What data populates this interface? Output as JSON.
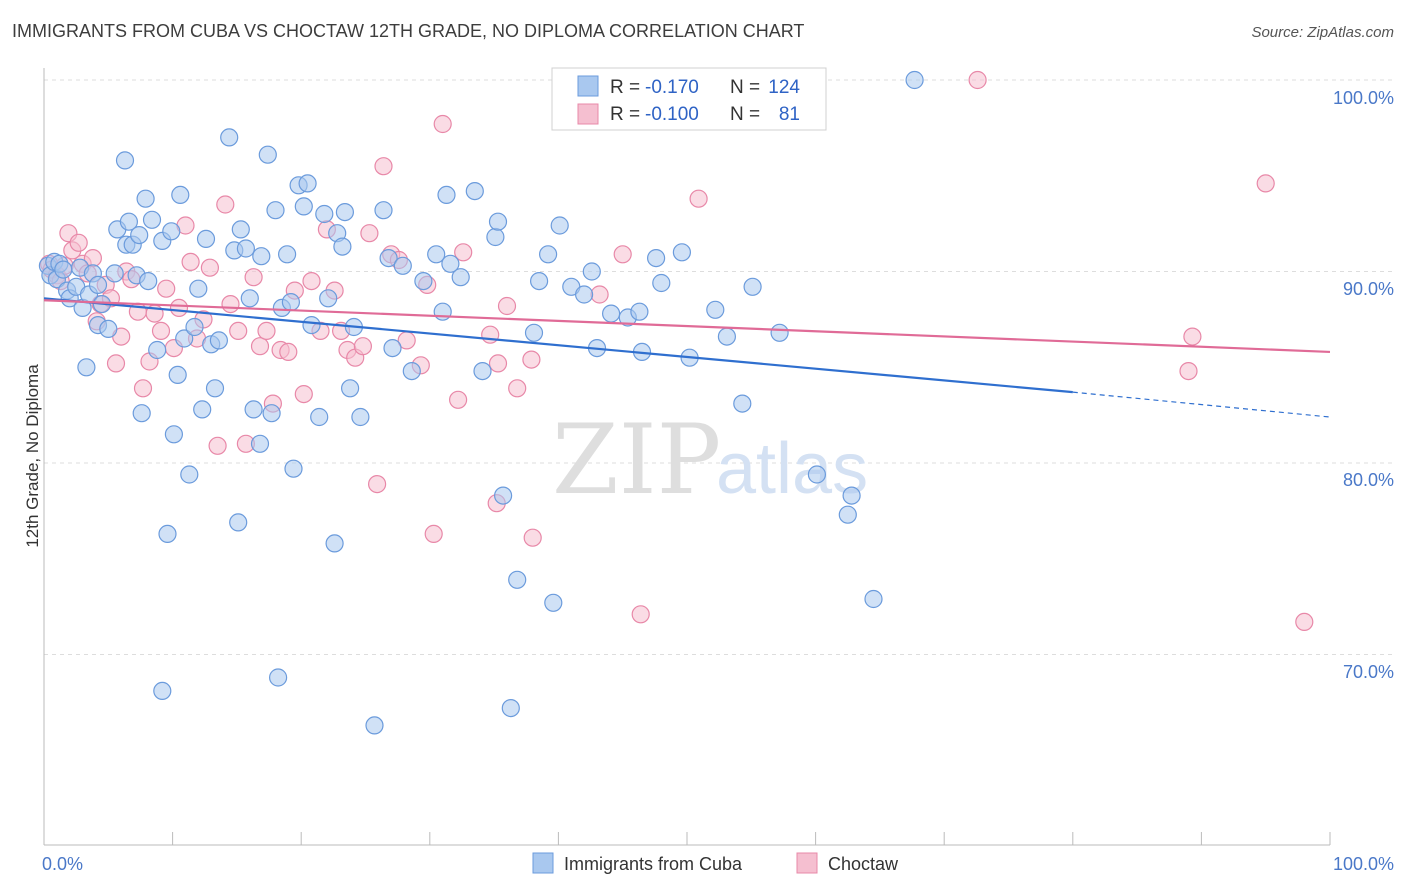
{
  "title": "IMMIGRANTS FROM CUBA VS CHOCTAW 12TH GRADE, NO DIPLOMA CORRELATION CHART",
  "source": "Source: ZipAtlas.com",
  "watermark": {
    "part1": "ZIP",
    "part2": "atlas"
  },
  "stats_box": {
    "rows": [
      {
        "r_label": "R =",
        "r_value": "-0.170",
        "n_label": "N =",
        "n_value": "124"
      },
      {
        "r_label": "R =",
        "r_value": "-0.100",
        "n_label": "N =",
        "n_value": "81"
      }
    ]
  },
  "legend": {
    "items": [
      {
        "label": "Immigrants from Cuba"
      },
      {
        "label": "Choctaw"
      }
    ]
  },
  "colors": {
    "cuba_fill": "#a9c8ef",
    "cuba_stroke": "#6b9bdc",
    "cuba_line": "#2f6fcf",
    "choctaw_fill": "#f5bfd0",
    "choctaw_stroke": "#e888a8",
    "choctaw_line": "#e06b97",
    "grid": "#dddddd",
    "axis_text": "#4a78c8"
  },
  "chart_data": {
    "type": "scatter",
    "title": "IMMIGRANTS FROM CUBA VS CHOCTAW 12TH GRADE, NO DIPLOMA CORRELATION CHART",
    "xlabel": "",
    "ylabel": "12th Grade, No Diploma",
    "xlim": [
      0,
      100
    ],
    "ylim": [
      61,
      101.5
    ],
    "x_tick_labels": [
      "0.0%",
      "100.0%"
    ],
    "y_tick_values": [
      70,
      80,
      90,
      100
    ],
    "y_tick_labels": [
      "70.0%",
      "80.0%",
      "90.0%",
      "100.0%"
    ],
    "grid": true,
    "legend_position": "bottom",
    "series": [
      {
        "name": "Immigrants from Cuba",
        "r": -0.17,
        "n": 124,
        "trend": {
          "x_solid": [
            0,
            80
          ],
          "y_solid": [
            88.6,
            83.7
          ],
          "x_dashed": [
            80,
            100
          ],
          "y_dashed": [
            83.7,
            82.4
          ]
        },
        "points": [
          [
            0.3,
            90.3
          ],
          [
            0.5,
            89.8
          ],
          [
            0.8,
            90.5
          ],
          [
            1.0,
            89.6
          ],
          [
            1.2,
            90.4
          ],
          [
            1.5,
            90.1
          ],
          [
            1.8,
            89.0
          ],
          [
            2.0,
            88.6
          ],
          [
            2.5,
            89.2
          ],
          [
            2.8,
            90.2
          ],
          [
            3.0,
            88.1
          ],
          [
            3.3,
            85.0
          ],
          [
            3.5,
            88.8
          ],
          [
            3.8,
            89.9
          ],
          [
            4.2,
            89.3
          ],
          [
            4.2,
            87.2
          ],
          [
            4.5,
            88.3
          ],
          [
            5.0,
            87.0
          ],
          [
            5.5,
            89.9
          ],
          [
            5.7,
            92.2
          ],
          [
            6.3,
            95.8
          ],
          [
            6.4,
            91.4
          ],
          [
            6.6,
            92.6
          ],
          [
            6.9,
            91.4
          ],
          [
            7.2,
            89.8
          ],
          [
            7.4,
            91.9
          ],
          [
            7.6,
            82.6
          ],
          [
            7.9,
            93.8
          ],
          [
            8.1,
            89.5
          ],
          [
            8.4,
            92.7
          ],
          [
            8.8,
            85.9
          ],
          [
            9.2,
            91.6
          ],
          [
            9.6,
            76.3
          ],
          [
            9.9,
            92.1
          ],
          [
            10.1,
            81.5
          ],
          [
            10.4,
            84.6
          ],
          [
            10.6,
            94.0
          ],
          [
            10.9,
            86.5
          ],
          [
            11.3,
            79.4
          ],
          [
            11.7,
            87.1
          ],
          [
            12.0,
            89.1
          ],
          [
            12.3,
            82.8
          ],
          [
            12.6,
            91.7
          ],
          [
            13.0,
            86.2
          ],
          [
            13.3,
            83.9
          ],
          [
            13.6,
            86.4
          ],
          [
            14.4,
            97.0
          ],
          [
            14.8,
            91.1
          ],
          [
            15.1,
            76.9
          ],
          [
            15.3,
            92.2
          ],
          [
            15.7,
            91.2
          ],
          [
            16.0,
            88.6
          ],
          [
            16.3,
            82.8
          ],
          [
            16.8,
            81.0
          ],
          [
            16.9,
            90.8
          ],
          [
            17.4,
            96.1
          ],
          [
            17.7,
            82.6
          ],
          [
            18.0,
            93.2
          ],
          [
            18.5,
            88.1
          ],
          [
            18.9,
            90.9
          ],
          [
            19.2,
            88.4
          ],
          [
            19.4,
            79.7
          ],
          [
            19.8,
            94.5
          ],
          [
            20.2,
            93.4
          ],
          [
            20.5,
            94.6
          ],
          [
            20.8,
            87.2
          ],
          [
            21.4,
            82.4
          ],
          [
            21.8,
            93.0
          ],
          [
            22.1,
            88.6
          ],
          [
            22.6,
            75.8
          ],
          [
            22.8,
            92.0
          ],
          [
            23.2,
            91.3
          ],
          [
            23.4,
            93.1
          ],
          [
            23.8,
            83.9
          ],
          [
            24.1,
            87.1
          ],
          [
            24.6,
            82.4
          ],
          [
            26.4,
            93.2
          ],
          [
            26.8,
            90.7
          ],
          [
            27.1,
            86.0
          ],
          [
            27.9,
            90.3
          ],
          [
            28.6,
            84.8
          ],
          [
            29.5,
            89.5
          ],
          [
            30.5,
            90.9
          ],
          [
            31.0,
            87.9
          ],
          [
            31.3,
            94.0
          ],
          [
            31.6,
            90.4
          ],
          [
            32.4,
            89.7
          ],
          [
            33.5,
            94.2
          ],
          [
            34.1,
            84.8
          ],
          [
            35.1,
            91.8
          ],
          [
            35.3,
            92.6
          ],
          [
            35.7,
            78.3
          ],
          [
            36.3,
            67.2
          ],
          [
            36.8,
            73.9
          ],
          [
            38.1,
            86.8
          ],
          [
            38.5,
            89.5
          ],
          [
            39.2,
            90.9
          ],
          [
            39.6,
            72.7
          ],
          [
            40.1,
            92.4
          ],
          [
            41.0,
            89.2
          ],
          [
            42.0,
            88.8
          ],
          [
            42.6,
            90.0
          ],
          [
            43.0,
            86.0
          ],
          [
            44.1,
            87.8
          ],
          [
            45.4,
            87.6
          ],
          [
            46.3,
            87.9
          ],
          [
            46.5,
            85.8
          ],
          [
            47.6,
            90.7
          ],
          [
            48.0,
            89.4
          ],
          [
            49.6,
            91.0
          ],
          [
            50.2,
            85.5
          ],
          [
            52.2,
            88.0
          ],
          [
            53.1,
            86.6
          ],
          [
            54.3,
            83.1
          ],
          [
            55.1,
            89.2
          ],
          [
            57.2,
            86.8
          ],
          [
            60.1,
            79.4
          ],
          [
            62.5,
            77.3
          ],
          [
            62.8,
            78.3
          ],
          [
            64.5,
            72.9
          ],
          [
            67.7,
            100.0
          ],
          [
            9.2,
            68.1
          ],
          [
            18.2,
            68.8
          ],
          [
            25.7,
            66.3
          ]
        ]
      },
      {
        "name": "Choctaw",
        "r": -0.1,
        "n": 81,
        "trend": {
          "x_solid": [
            0,
            100
          ],
          "y_solid": [
            88.5,
            85.8
          ]
        },
        "points": [
          [
            0.4,
            90.4
          ],
          [
            0.6,
            90.1
          ],
          [
            1.0,
            89.8
          ],
          [
            1.3,
            89.5
          ],
          [
            1.6,
            90.3
          ],
          [
            1.9,
            92.0
          ],
          [
            2.2,
            91.1
          ],
          [
            2.7,
            91.5
          ],
          [
            3.0,
            90.4
          ],
          [
            3.4,
            89.9
          ],
          [
            3.8,
            90.7
          ],
          [
            4.1,
            87.4
          ],
          [
            4.4,
            88.3
          ],
          [
            4.8,
            89.3
          ],
          [
            5.2,
            88.6
          ],
          [
            5.6,
            85.2
          ],
          [
            6.0,
            86.6
          ],
          [
            6.4,
            90.0
          ],
          [
            6.8,
            89.6
          ],
          [
            7.3,
            87.9
          ],
          [
            7.7,
            83.9
          ],
          [
            8.2,
            85.3
          ],
          [
            8.6,
            87.8
          ],
          [
            9.1,
            86.9
          ],
          [
            9.5,
            89.1
          ],
          [
            10.1,
            86.0
          ],
          [
            10.5,
            88.1
          ],
          [
            11.0,
            92.4
          ],
          [
            11.4,
            90.5
          ],
          [
            11.9,
            86.5
          ],
          [
            12.4,
            87.5
          ],
          [
            12.9,
            90.2
          ],
          [
            13.5,
            80.9
          ],
          [
            14.1,
            93.5
          ],
          [
            14.5,
            88.3
          ],
          [
            15.1,
            86.9
          ],
          [
            15.7,
            81.0
          ],
          [
            16.3,
            89.7
          ],
          [
            16.8,
            86.1
          ],
          [
            17.3,
            86.9
          ],
          [
            17.8,
            83.1
          ],
          [
            18.4,
            85.9
          ],
          [
            19.0,
            85.8
          ],
          [
            19.5,
            89.0
          ],
          [
            20.2,
            83.6
          ],
          [
            20.8,
            89.5
          ],
          [
            21.5,
            86.9
          ],
          [
            22.0,
            92.2
          ],
          [
            22.6,
            89.0
          ],
          [
            23.1,
            86.9
          ],
          [
            23.6,
            85.9
          ],
          [
            24.2,
            85.5
          ],
          [
            24.8,
            86.1
          ],
          [
            25.3,
            92.0
          ],
          [
            25.9,
            78.9
          ],
          [
            26.4,
            95.5
          ],
          [
            27.0,
            90.9
          ],
          [
            27.6,
            90.6
          ],
          [
            28.2,
            86.4
          ],
          [
            29.3,
            85.1
          ],
          [
            29.8,
            89.3
          ],
          [
            30.3,
            76.3
          ],
          [
            31.0,
            97.7
          ],
          [
            32.2,
            83.3
          ],
          [
            32.6,
            91.0
          ],
          [
            34.7,
            86.7
          ],
          [
            35.2,
            77.9
          ],
          [
            36.0,
            88.2
          ],
          [
            36.8,
            83.9
          ],
          [
            38.0,
            76.1
          ],
          [
            37.9,
            85.4
          ],
          [
            43.2,
            88.8
          ],
          [
            45.0,
            90.9
          ],
          [
            46.4,
            72.1
          ],
          [
            50.9,
            93.8
          ],
          [
            89.3,
            86.6
          ],
          [
            95.0,
            94.6
          ],
          [
            98.0,
            71.7
          ],
          [
            89.0,
            84.8
          ],
          [
            35.3,
            85.2
          ],
          [
            72.6,
            100.0
          ]
        ]
      }
    ]
  }
}
